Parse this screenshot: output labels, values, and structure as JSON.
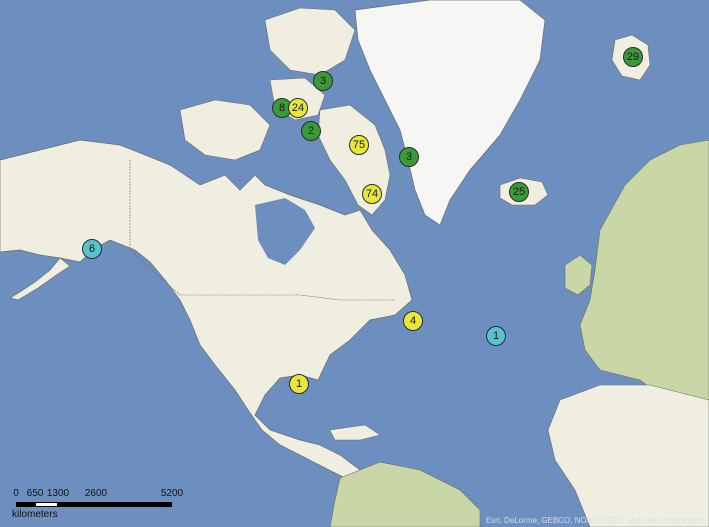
{
  "map": {
    "type": "reference map with count markers",
    "colors": {
      "ocean": "#6d8fbf",
      "land": "#efeee0",
      "land_green": "#c9d6a5",
      "ice": "#f6f6f4",
      "border": "#6b6b6b",
      "marker_green": "#3a9a3a",
      "marker_yellow": "#e9e63a",
      "marker_cyan": "#56c4cf"
    },
    "markers": [
      {
        "label": "3",
        "color": "green"
      },
      {
        "label": "8",
        "color": "green"
      },
      {
        "label": "24",
        "color": "yellow"
      },
      {
        "label": "2",
        "color": "green"
      },
      {
        "label": "75",
        "color": "yellow"
      },
      {
        "label": "3",
        "color": "green"
      },
      {
        "label": "74",
        "color": "yellow"
      },
      {
        "label": "25",
        "color": "green"
      },
      {
        "label": "29",
        "color": "green"
      },
      {
        "label": "6",
        "color": "cyan"
      },
      {
        "label": "4",
        "color": "yellow"
      },
      {
        "label": "1",
        "color": "cyan"
      },
      {
        "label": "1",
        "color": "yellow"
      }
    ],
    "scale": {
      "ticks": [
        "0",
        "650",
        "1300",
        "2600",
        "5200"
      ],
      "unit": "kilometers"
    },
    "attribution": "Esri, DeLorme, GEBCO, NOAA NGDC, and other contributors"
  }
}
